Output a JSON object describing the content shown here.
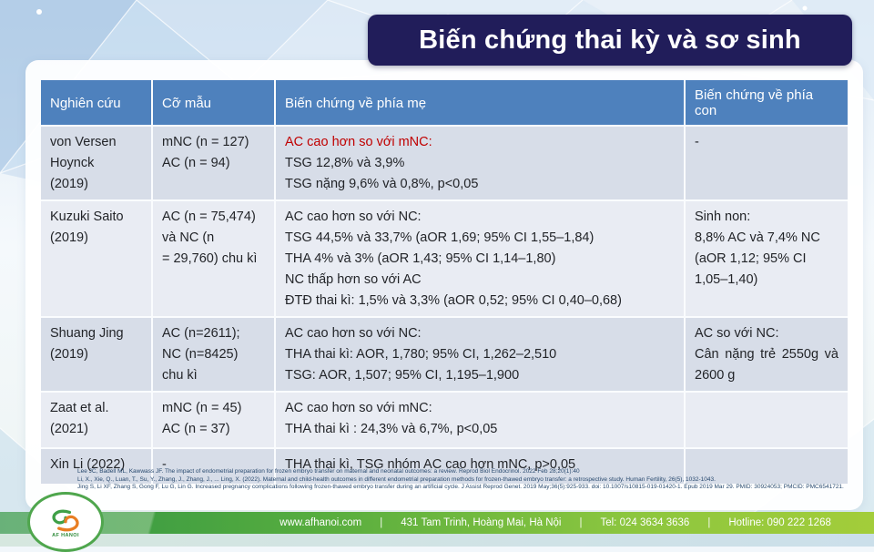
{
  "slide": {
    "title": "Biến chứng thai kỳ và sơ sinh"
  },
  "table": {
    "headers": [
      "Nghiên cứu",
      "Cỡ mẫu",
      "Biến chứng về phía mẹ",
      "Biến chứng về phía con"
    ],
    "rows": [
      {
        "study": [
          "von Versen",
          "Hoynck",
          "(2019)"
        ],
        "sample": [
          "mNC (n = 127)",
          "AC (n = 94)"
        ],
        "maternal": [
          "AC cao hơn so với mNC:",
          "TSG 12,8% và 3,9%",
          "TSG nặng 9,6% và 0,8%, p<0,05"
        ],
        "red_lead": true,
        "neonatal": [
          "-"
        ]
      },
      {
        "study": [
          "Kuzuki Saito",
          "(2019)"
        ],
        "sample": [
          "AC (n = 75,474)",
          "và NC (n",
          "= 29,760) chu kì"
        ],
        "maternal": [
          "AC cao hơn so với NC:",
          "TSG 44,5% và 33,7% (aOR 1,69; 95% CI 1,55–1,84)",
          "THA 4% và 3% (aOR 1,43; 95% CI 1,14–1,80)",
          "NC thấp hơn so với AC",
          "ĐTĐ thai kì: 1,5% và 3,3% (aOR 0,52; 95% CI 0,40–0,68)"
        ],
        "neonatal": [
          "Sinh non:",
          "8,8% AC và 7,4% NC (aOR 1,12; 95% CI 1,05–1,40)"
        ]
      },
      {
        "study": [
          "Shuang Jing",
          "(2019)"
        ],
        "sample": [
          "AC (n=2611);",
          "NC (n=8425)",
          "chu kì"
        ],
        "maternal": [
          "AC cao hơn so với NC:",
          "THA thai kì: AOR, 1,780; 95% CI, 1,262–2,510",
          "TSG: AOR, 1,507; 95% CI, 1,195–1,900"
        ],
        "neonatal": [
          "AC so với NC:",
          "Cân nặng trẻ 2550g và 2600 g"
        ]
      },
      {
        "study": [
          "Zaat et al.",
          "(2021)"
        ],
        "sample": [
          "mNC (n = 45)",
          "AC (n = 37)"
        ],
        "maternal": [
          "AC cao hơn so với mNC:",
          "THA thai kì : 24,3% và 6,7%, p<0,05"
        ],
        "neonatal": [
          ""
        ]
      },
      {
        "study": [
          "Xin Li (2022)"
        ],
        "sample": [
          "-"
        ],
        "maternal": [
          "THA thai kì, TSG nhóm AC cao hơn mNC, p>0,05"
        ],
        "neonatal": [
          ""
        ]
      }
    ]
  },
  "references": [
    "Lee JC, Badell ML, Kawwass JF. The impact of endometrial preparation for frozen embryo transfer on maternal and neonatal outcomes: a review. Reprod Biol Endocrinol. 2022 Feb 28;20(1):40",
    "Li, X., Xie, Q., Luan, T., Su, Y., Zhang, J., Zhang, J., ... Ling, X. (2022). Maternal and child-health outcomes in different endometrial preparation methods for frozen-thawed embryo transfer: a retrospective study. Human Fertility, 26(5), 1032-1043.",
    "Jing S, Li XF, Zhang S, Gong F, Lu G, Lin G. Increased pregnancy complications following frozen-thawed embryo transfer during an artificial cycle. J Assist Reprod Genet. 2019 May;36(5):925-933. doi: 10.1007/s10815-019-01420-1. Epub 2019 Mar 29. PMID: 30924053; PMCID: PMC6541721."
  ],
  "footer": {
    "website": "www.afhanoi.com",
    "separator": "|",
    "address": "431 Tam Trinh, Hoàng Mai, Hà Nội",
    "tel": "Tel: 024 3634 3636",
    "hotline": "Hotline: 090 222 1268"
  },
  "logo": {
    "text": "AF HANOI"
  },
  "colors": {
    "title_bg": "#211D5A",
    "header_bg": "#4E81BD",
    "row_odd": "#D7DDE8",
    "row_even": "#E9ECF3",
    "highlight_red": "#C00000",
    "footer_green_dark": "#2F9345",
    "footer_green_light": "#A3CD3A",
    "logo_green": "#4FA64D",
    "logo_orange": "#E87E23"
  }
}
